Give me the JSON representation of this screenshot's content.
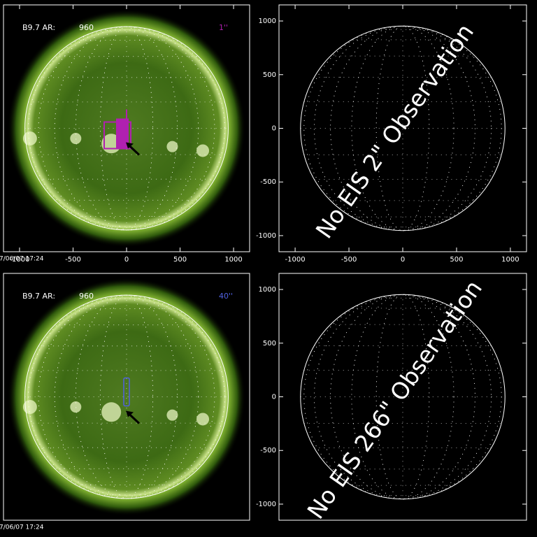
{
  "panels": [
    {
      "label": "B9.7 AR:",
      "ar": "960",
      "slit": "1''",
      "slit_color": "#b020b0",
      "timestamp": "7/06/07 17:24",
      "xlim": [
        -1150,
        1150
      ],
      "ylim": [
        -1150,
        1150
      ],
      "xticks": [
        -1000,
        -500,
        0,
        500,
        1000
      ]
    },
    {
      "message": "No EIS 2\" Observation",
      "xlim": [
        -1150,
        1150
      ],
      "ylim": [
        -1150,
        1150
      ],
      "xticks": [
        -1000,
        -500,
        0,
        500,
        1000
      ],
      "yticks": [
        -1000,
        -500,
        0,
        500,
        1000
      ]
    },
    {
      "label": "B9.7 AR:",
      "ar": "960",
      "slit": "40''",
      "slit_color": "#5060e0",
      "timestamp": "7/06/07 17:24",
      "xlim": [
        -1150,
        1150
      ],
      "ylim": [
        -1150,
        1150
      ]
    },
    {
      "message": "No EIS 266\" Observation",
      "xlim": [
        -1150,
        1150
      ],
      "ylim": [
        -1150,
        1150
      ],
      "yticks": [
        -1000,
        -500,
        0,
        500,
        1000
      ]
    }
  ]
}
